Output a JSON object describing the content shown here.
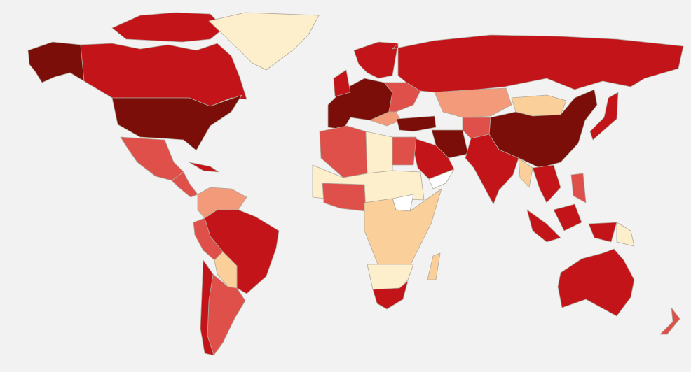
{
  "map": {
    "colors": [
      "#7b0e08",
      "#c3141a",
      "#e0504b",
      "#f29a7a",
      "#fbcf9a",
      "#fdefcc",
      "#ffffff"
    ],
    "border": "#b0a89a",
    "background": "#f2f2f2"
  }
}
